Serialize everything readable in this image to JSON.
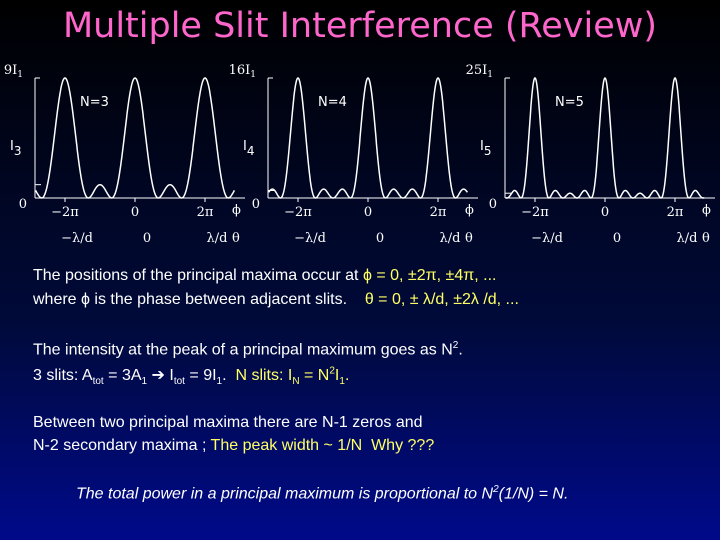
{
  "title": "Multiple Slit Interference (Review)",
  "panels": [
    {
      "peak_label": [
        "9I",
        "1"
      ],
      "n_label": "N=3",
      "intensity_label": [
        "I",
        "3"
      ],
      "origin": "0",
      "phi_ticks": [
        "−2π",
        "0",
        "2π"
      ],
      "phi": "ϕ",
      "theta_ticks": [
        "−λ/d",
        "0",
        "λ/d"
      ],
      "theta": "θ"
    },
    {
      "peak_label": [
        "16I",
        "1"
      ],
      "n_label": "N=4",
      "intensity_label": [
        "I",
        "4"
      ],
      "origin": "0",
      "phi_ticks": [
        "−2π",
        "0",
        "2π"
      ],
      "phi": "ϕ",
      "theta_ticks": [
        "−λ/d",
        "0",
        "λ/d"
      ],
      "theta": "θ"
    },
    {
      "peak_label": [
        "25I",
        "1"
      ],
      "n_label": "N=5",
      "intensity_label": [
        "I",
        "5"
      ],
      "origin": "0",
      "phi_ticks": [
        "−2π",
        "0",
        "2π"
      ],
      "phi": "ϕ",
      "theta_ticks": [
        "−λ/d",
        "0",
        "λ/d"
      ],
      "theta": "θ"
    }
  ],
  "text": {
    "maxima": [
      [
        "The positions of the principal maxima occur at ",
        "ϕ = 0, ±2π, ±4π, ..."
      ],
      [
        "where ϕ is the phase between adjacent slits.",
        "θ = 0, ± λ/d, ±2λ /d, ..."
      ]
    ],
    "intensity": [
      [
        "The intensity at the peak of a principal maximum goes as N",
        "2",
        "."
      ],
      [
        "3 slits: A",
        "tot",
        " = 3A",
        "1",
        " ➔ I",
        "tot",
        " = 9I",
        "1",
        ".  ",
        "N slits: I",
        "N",
        " = N",
        "2",
        "I",
        "1",
        "."
      ]
    ],
    "zeros": [
      [
        "Between two principal maxima there are N-1 zeros and"
      ],
      [
        "N-2 secondary maxima ; ",
        "The peak width ~ 1/N",
        "  Why ???"
      ]
    ],
    "power": [
      "The total power in a principal maximum is proportional to N",
      "2",
      "(1/N) = N."
    ]
  }
}
